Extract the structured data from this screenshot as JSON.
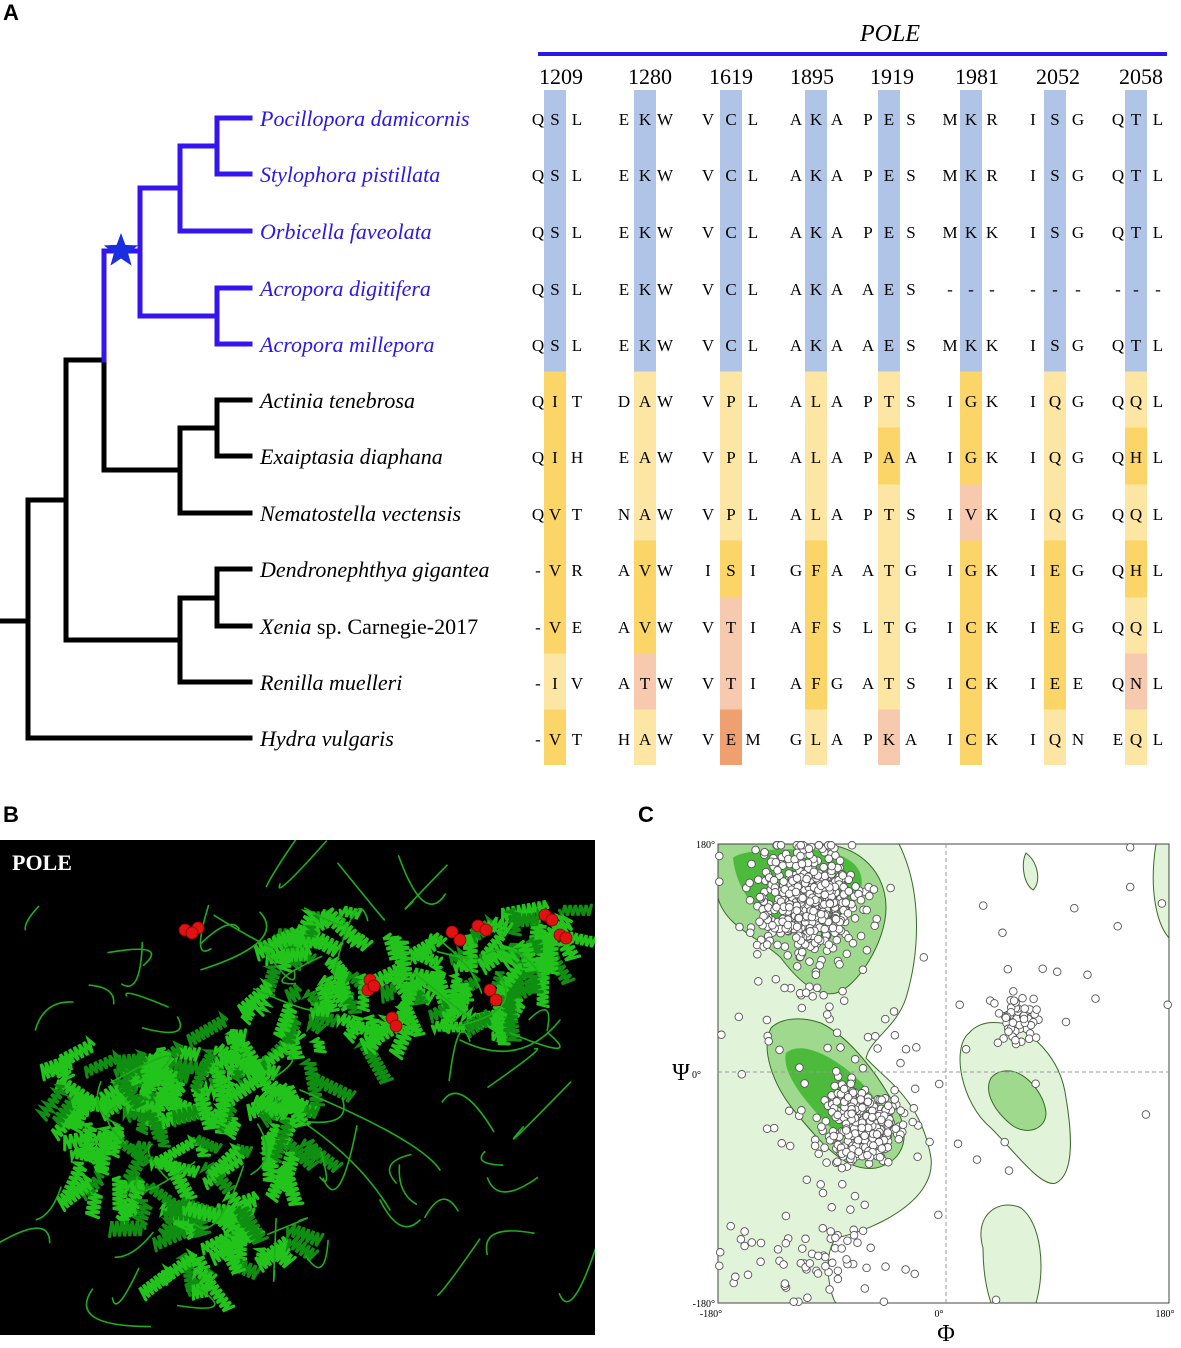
{
  "panels": {
    "a": "A",
    "b": "B",
    "c": "C"
  },
  "panel_a": {
    "gene": "POLE",
    "positions": [
      "1209",
      "1280",
      "1619",
      "1895",
      "1919",
      "1981",
      "2052",
      "2058"
    ],
    "species": [
      {
        "name": "Pocillopora damicornis",
        "coral": true,
        "seq": "QSL EKW VCL AKA PES MKR ISG QTL"
      },
      {
        "name": "Stylophora pistillata",
        "coral": true,
        "seq": "QSL EKW VCL AKA PES MKR ISG QTL"
      },
      {
        "name": "Orbicella faveolata",
        "coral": true,
        "seq": "QSL EKW VCL AKA PES MKK ISG QTL"
      },
      {
        "name": "Acropora digitifera",
        "coral": true,
        "seq": "QSL EKW VCL AKA AES --- --- ---"
      },
      {
        "name": "Acropora millepora",
        "coral": true,
        "seq": "QSL EKW VCL AKA AES MKK ISG QTL"
      },
      {
        "name": "Actinia tenebrosa",
        "coral": false,
        "seq": "QIT DAW VPL ALA PTS IGK IQG QQL"
      },
      {
        "name": "Exaiptasia diaphana",
        "coral": false,
        "seq": "QIH EAW VPL ALA PAA IGK IQG QHL"
      },
      {
        "name": "Nematostella vectensis",
        "coral": false,
        "seq": "QVT NAW VPL ALA PTS IVK IQG QQL"
      },
      {
        "name": "Dendronephthya gigantea",
        "coral": false,
        "seq": "-VR AVW ISI GFA ATG IGK IEG QHL"
      },
      {
        "name": "Xenia",
        "suffix": " sp. Carnegie-2017",
        "coral": false,
        "seq": "-VE AVW VTI AFS LTG ICK IEG QQL"
      },
      {
        "name": "Renilla muelleri",
        "coral": false,
        "seq": "-IV ATW VTI AFG ATS ICK IEE QNL"
      },
      {
        "name": "Hydra vulgaris",
        "coral": false,
        "seq": "-VT HAW VEM GLA PKA ICK IQN EQL"
      }
    ],
    "shading": [
      [
        "blue",
        "blue",
        "blue",
        "blue",
        "blue",
        "blue",
        "blue",
        "blue"
      ],
      [
        "blue",
        "blue",
        "blue",
        "blue",
        "blue",
        "blue",
        "blue",
        "blue"
      ],
      [
        "blue",
        "blue",
        "blue",
        "blue",
        "blue",
        "blue",
        "blue",
        "blue"
      ],
      [
        "blue",
        "blue",
        "blue",
        "blue",
        "blue",
        "blue",
        "blue",
        "blue"
      ],
      [
        "blue",
        "blue",
        "blue",
        "blue",
        "blue",
        "blue",
        "blue",
        "blue"
      ],
      [
        "y2",
        "y1",
        "y1",
        "y1",
        "y1",
        "y2",
        "y1",
        "y1"
      ],
      [
        "y2",
        "y1",
        "y1",
        "y1",
        "y2",
        "y2",
        "y1",
        "y2"
      ],
      [
        "y2",
        "y1",
        "y1",
        "y1",
        "y1",
        "salmon",
        "y1",
        "y1"
      ],
      [
        "y2",
        "y2",
        "y2",
        "y2",
        "y1",
        "y2",
        "y2",
        "y2"
      ],
      [
        "y2",
        "y2",
        "salmon",
        "y2",
        "y1",
        "y2",
        "y2",
        "y1"
      ],
      [
        "y1",
        "salmon",
        "salmon",
        "y2",
        "y1",
        "y2",
        "y2",
        "salmon"
      ],
      [
        "y2",
        "y1",
        "orange",
        "y1",
        "salmon",
        "y2",
        "y1",
        "y1"
      ]
    ],
    "colors": {
      "blue": "#b0c4e8",
      "y1": "#fde6a4",
      "y2": "#fbd567",
      "salmon": "#f7c9ae",
      "orange": "#f0a070",
      "coral_text": "#2b17e6",
      "coral_branch": "#3514f2",
      "star": "#1b2de0"
    }
  },
  "panel_b": {
    "label": "POLE"
  },
  "panel_c": {
    "y_symbol": "Ψ",
    "x_symbol": "Φ",
    "y_ticks": [
      "180°",
      "0°",
      "-180°"
    ],
    "x_ticks": [
      "-180°",
      "0°",
      "180°"
    ],
    "colors": {
      "region_light": "#e1f3d8",
      "region_mid": "#9ed98d",
      "region_core": "#4cbb3c",
      "outline": "#3a6a2a",
      "point": "#ffffff"
    }
  }
}
